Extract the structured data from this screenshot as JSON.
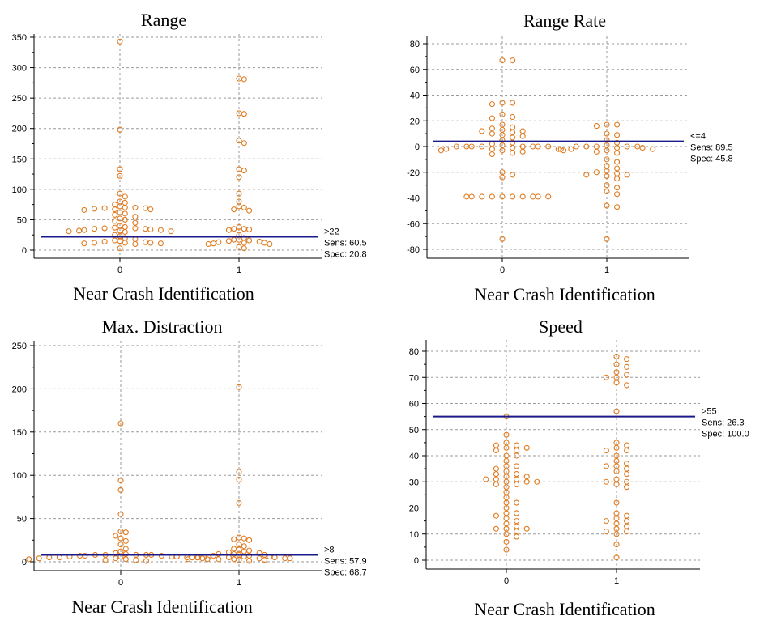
{
  "chart_data": [
    {
      "type": "scatter",
      "title": "Range",
      "xlabel": "Near Crash Identification",
      "categories": [
        "0",
        "1"
      ],
      "ylim": [
        0,
        350
      ],
      "yticks": [
        0,
        50,
        100,
        150,
        200,
        250,
        300,
        350
      ],
      "grid": true,
      "criterion": {
        "value": 22,
        "label": ">22",
        "sens": "Sens: 60.5",
        "spec": "Spec: 20.8"
      },
      "groups": [
        {
          "category": "0",
          "values": [
            343,
            198,
            133,
            122,
            93,
            88,
            80,
            78,
            75,
            72,
            70,
            70,
            69,
            69,
            68,
            67,
            67,
            66,
            62,
            60,
            58,
            55,
            52,
            50,
            48,
            45,
            40,
            38,
            37,
            36,
            36,
            35,
            35,
            34,
            33,
            33,
            32,
            32,
            31,
            31,
            30,
            25,
            23,
            20,
            18,
            16,
            15,
            14,
            13,
            12,
            12,
            12,
            11,
            11,
            10,
            3
          ]
        },
        {
          "category": "1",
          "values": [
            282,
            281,
            225,
            224,
            180,
            176,
            133,
            131,
            120,
            93,
            80,
            72,
            70,
            67,
            65,
            38,
            35,
            35,
            34,
            33,
            25,
            20,
            17,
            17,
            16,
            15,
            14,
            13,
            12,
            12,
            11,
            10,
            10,
            5,
            3
          ]
        }
      ]
    },
    {
      "type": "scatter",
      "title": "Range Rate",
      "xlabel": "Near Crash Identification",
      "categories": [
        "0",
        "1"
      ],
      "ylim": [
        -85,
        85
      ],
      "yticks": [
        -80,
        -60,
        -40,
        -20,
        0,
        20,
        40,
        60,
        80
      ],
      "grid": true,
      "criterion": {
        "value": 4,
        "label": "<=4",
        "sens": "Sens: 89.5",
        "spec": "Spec: 45.8"
      },
      "groups": [
        {
          "category": "0",
          "values": [
            67,
            67,
            34,
            34,
            33,
            25,
            23,
            22,
            17,
            15,
            14,
            13,
            12,
            12,
            11,
            10,
            9,
            8,
            7,
            5,
            3,
            2,
            1,
            0,
            0,
            0,
            0,
            0,
            0,
            0,
            0,
            -1,
            -2,
            -2,
            -2,
            -3,
            -3,
            -3,
            -4,
            -5,
            -6,
            -20,
            -22,
            -24,
            -39,
            -39,
            -39,
            -39,
            -39,
            -39,
            -39,
            -39,
            -39,
            -39,
            -72
          ]
        },
        {
          "category": "1",
          "values": [
            17,
            17,
            16,
            10,
            9,
            5,
            3,
            1,
            0,
            0,
            0,
            0,
            0,
            -1,
            -1,
            -2,
            -2,
            -2,
            -3,
            -4,
            -5,
            -10,
            -12,
            -15,
            -17,
            -19,
            -20,
            -21,
            -22,
            -22,
            -23,
            -25,
            -30,
            -32,
            -35,
            -37,
            -46,
            -47,
            -72
          ]
        }
      ]
    },
    {
      "type": "scatter",
      "title": "Max. Distraction",
      "xlabel": "Near Crash Identification",
      "categories": [
        "0",
        "1"
      ],
      "ylim": [
        0,
        250
      ],
      "yticks": [
        0,
        50,
        100,
        150,
        200,
        250
      ],
      "grid": true,
      "criterion": {
        "value": 8,
        "label": ">8",
        "sens": "Sens: 57.9",
        "spec": "Spec: 68.7"
      },
      "groups": [
        {
          "category": "0",
          "values": [
            160,
            94,
            83,
            55,
            35,
            34,
            30,
            27,
            24,
            20,
            15,
            12,
            10,
            9,
            8,
            8,
            8,
            8,
            8,
            7,
            7,
            7,
            6,
            6,
            6,
            6,
            5,
            5,
            5,
            5,
            5,
            4,
            4,
            4,
            3,
            3,
            3,
            2,
            2,
            1
          ]
        },
        {
          "category": "1",
          "values": [
            202,
            104,
            95,
            68,
            28,
            27,
            26,
            25,
            20,
            18,
            15,
            14,
            13,
            12,
            11,
            10,
            9,
            9,
            8,
            8,
            7,
            7,
            6,
            6,
            6,
            5,
            5,
            5,
            4,
            4,
            4,
            3,
            3,
            3,
            2,
            2,
            1
          ]
        }
      ]
    },
    {
      "type": "scatter",
      "title": "Speed",
      "xlabel": "Near Crash Identification",
      "categories": [
        "0",
        "1"
      ],
      "ylim": [
        -2,
        83
      ],
      "yticks": [
        0,
        10,
        20,
        30,
        40,
        50,
        60,
        70,
        80
      ],
      "grid": true,
      "criterion": {
        "value": 55,
        "label": ">55",
        "sens": "Sens: 26.3",
        "spec": "Spec: 100.0"
      },
      "groups": [
        {
          "category": "0",
          "values": [
            55,
            48,
            45,
            44,
            44,
            43,
            43,
            42,
            42,
            40,
            40,
            38,
            36,
            36,
            35,
            34,
            33,
            33,
            32,
            32,
            31,
            31,
            31,
            30,
            30,
            30,
            29,
            29,
            28,
            26,
            24,
            22,
            22,
            20,
            18,
            18,
            17,
            16,
            15,
            14,
            13,
            12,
            12,
            12,
            11,
            10,
            9,
            7,
            4
          ]
        },
        {
          "category": "1",
          "values": [
            78,
            77,
            75,
            74,
            72,
            71,
            70,
            70,
            68,
            67,
            57,
            45,
            44,
            43,
            42,
            42,
            40,
            38,
            37,
            36,
            36,
            35,
            34,
            33,
            31,
            30,
            30,
            29,
            28,
            22,
            18,
            17,
            16,
            15,
            15,
            14,
            13,
            12,
            11,
            11,
            10,
            6,
            1
          ]
        }
      ]
    }
  ]
}
